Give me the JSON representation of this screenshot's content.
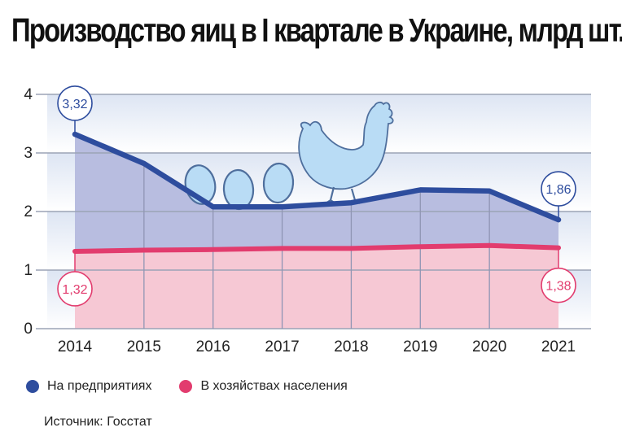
{
  "title": "Производство яиц в I квартале в Украине, млрд шт.",
  "source": "Источник: Госстат",
  "colors": {
    "enterprise_line": "#2e4d9e",
    "enterprise_fill": "#b8bde0",
    "household_line": "#e23c6e",
    "household_fill": "#f6c8d4",
    "background_band": "#dde5f3",
    "chicken": "#b9dcf5"
  },
  "chart_data": {
    "type": "area",
    "x": [
      "2014",
      "2015",
      "2016",
      "2017",
      "2018",
      "2019",
      "2020",
      "2021"
    ],
    "series": [
      {
        "name": "На предприятиях",
        "values": [
          3.32,
          2.82,
          2.08,
          2.08,
          2.15,
          2.37,
          2.35,
          1.86
        ]
      },
      {
        "name": "В хозяйствах населения",
        "values": [
          1.32,
          1.34,
          1.35,
          1.37,
          1.37,
          1.4,
          1.42,
          1.38
        ]
      }
    ],
    "y_ticks": [
      "0",
      "1",
      "2",
      "3",
      "4"
    ],
    "ylim": [
      0,
      4
    ],
    "grid": true,
    "legend_position": "bottom-left",
    "annotations": [
      {
        "series": 0,
        "index": 0,
        "label": "3,32"
      },
      {
        "series": 0,
        "index": 7,
        "label": "1,86"
      },
      {
        "series": 1,
        "index": 0,
        "label": "1,32"
      },
      {
        "series": 1,
        "index": 7,
        "label": "1,38"
      }
    ]
  }
}
